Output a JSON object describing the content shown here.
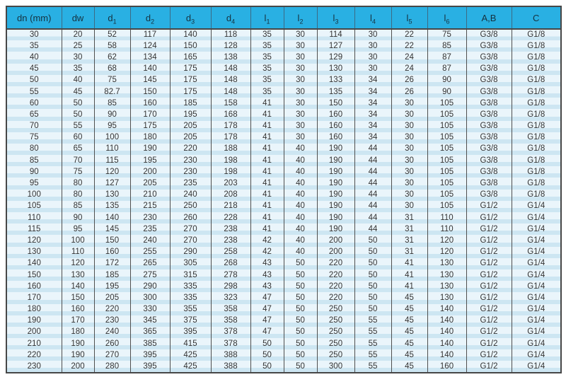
{
  "colors": {
    "header_bg": "#29b0e3",
    "row_stripe_light": "#eaf5fb",
    "row_stripe_dark": "#cde6f2",
    "border": "#474747",
    "text": "#333333"
  },
  "chart_data": {
    "type": "table",
    "title": "",
    "columns": [
      {
        "label": "dn (mm)",
        "sub": ""
      },
      {
        "label": "dw",
        "sub": ""
      },
      {
        "label": "d",
        "sub": "1"
      },
      {
        "label": "d",
        "sub": "2"
      },
      {
        "label": "d",
        "sub": "3"
      },
      {
        "label": "d",
        "sub": "4"
      },
      {
        "label": "l",
        "sub": "1"
      },
      {
        "label": "l",
        "sub": "2"
      },
      {
        "label": "l",
        "sub": "3"
      },
      {
        "label": "l",
        "sub": "4"
      },
      {
        "label": "l",
        "sub": "5"
      },
      {
        "label": "l",
        "sub": "6"
      },
      {
        "label": "A,B",
        "sub": ""
      },
      {
        "label": "C",
        "sub": ""
      }
    ],
    "rows": [
      [
        "30",
        "20",
        "52",
        "117",
        "140",
        "118",
        "35",
        "30",
        "114",
        "30",
        "22",
        "75",
        "G3/8",
        "G1/8"
      ],
      [
        "35",
        "25",
        "58",
        "124",
        "150",
        "128",
        "35",
        "30",
        "127",
        "30",
        "22",
        "85",
        "G3/8",
        "G1/8"
      ],
      [
        "40",
        "30",
        "62",
        "134",
        "165",
        "138",
        "35",
        "30",
        "129",
        "30",
        "24",
        "87",
        "G3/8",
        "G1/8"
      ],
      [
        "45",
        "35",
        "68",
        "140",
        "175",
        "148",
        "35",
        "30",
        "130",
        "30",
        "24",
        "87",
        "G3/8",
        "G1/8"
      ],
      [
        "50",
        "40",
        "75",
        "145",
        "175",
        "148",
        "35",
        "30",
        "133",
        "34",
        "26",
        "90",
        "G3/8",
        "G1/8"
      ],
      [
        "55",
        "45",
        "82.7",
        "150",
        "175",
        "148",
        "35",
        "30",
        "135",
        "34",
        "26",
        "90",
        "G3/8",
        "G1/8"
      ],
      [
        "60",
        "50",
        "85",
        "160",
        "185",
        "158",
        "41",
        "30",
        "150",
        "34",
        "30",
        "105",
        "G3/8",
        "G1/8"
      ],
      [
        "65",
        "50",
        "90",
        "170",
        "195",
        "168",
        "41",
        "30",
        "160",
        "34",
        "30",
        "105",
        "G3/8",
        "G1/8"
      ],
      [
        "70",
        "55",
        "95",
        "175",
        "205",
        "178",
        "41",
        "30",
        "160",
        "34",
        "30",
        "105",
        "G3/8",
        "G1/8"
      ],
      [
        "75",
        "60",
        "100",
        "180",
        "205",
        "178",
        "41",
        "30",
        "160",
        "34",
        "30",
        "105",
        "G3/8",
        "G1/8"
      ],
      [
        "80",
        "65",
        "110",
        "190",
        "220",
        "188",
        "41",
        "40",
        "190",
        "44",
        "30",
        "105",
        "G3/8",
        "G1/8"
      ],
      [
        "85",
        "70",
        "115",
        "195",
        "230",
        "198",
        "41",
        "40",
        "190",
        "44",
        "30",
        "105",
        "G3/8",
        "G1/8"
      ],
      [
        "90",
        "75",
        "120",
        "200",
        "230",
        "198",
        "41",
        "40",
        "190",
        "44",
        "30",
        "105",
        "G3/8",
        "G1/8"
      ],
      [
        "95",
        "80",
        "127",
        "205",
        "235",
        "203",
        "41",
        "40",
        "190",
        "44",
        "30",
        "105",
        "G3/8",
        "G1/8"
      ],
      [
        "100",
        "80",
        "130",
        "210",
        "240",
        "208",
        "41",
        "40",
        "190",
        "44",
        "30",
        "105",
        "G3/8",
        "G1/8"
      ],
      [
        "105",
        "85",
        "135",
        "215",
        "250",
        "218",
        "41",
        "40",
        "190",
        "44",
        "30",
        "105",
        "G1/2",
        "G1/4"
      ],
      [
        "110",
        "90",
        "140",
        "230",
        "260",
        "228",
        "41",
        "40",
        "190",
        "44",
        "31",
        "110",
        "G1/2",
        "G1/4"
      ],
      [
        "115",
        "95",
        "145",
        "235",
        "270",
        "238",
        "41",
        "40",
        "190",
        "44",
        "31",
        "110",
        "G1/2",
        "G1/4"
      ],
      [
        "120",
        "100",
        "150",
        "240",
        "270",
        "238",
        "42",
        "40",
        "200",
        "50",
        "31",
        "120",
        "G1/2",
        "G1/4"
      ],
      [
        "130",
        "110",
        "160",
        "255",
        "290",
        "258",
        "42",
        "40",
        "200",
        "50",
        "31",
        "120",
        "G1/2",
        "G1/4"
      ],
      [
        "140",
        "120",
        "172",
        "265",
        "305",
        "268",
        "43",
        "50",
        "220",
        "50",
        "41",
        "130",
        "G1/2",
        "G1/4"
      ],
      [
        "150",
        "130",
        "185",
        "275",
        "315",
        "278",
        "43",
        "50",
        "220",
        "50",
        "41",
        "130",
        "G1/2",
        "G1/4"
      ],
      [
        "160",
        "140",
        "195",
        "290",
        "335",
        "298",
        "43",
        "50",
        "220",
        "50",
        "41",
        "130",
        "G1/2",
        "G1/4"
      ],
      [
        "170",
        "150",
        "205",
        "300",
        "335",
        "323",
        "47",
        "50",
        "220",
        "50",
        "45",
        "130",
        "G1/2",
        "G1/4"
      ],
      [
        "180",
        "160",
        "220",
        "330",
        "355",
        "358",
        "47",
        "50",
        "250",
        "50",
        "45",
        "140",
        "G1/2",
        "G1/4"
      ],
      [
        "190",
        "170",
        "230",
        "345",
        "375",
        "358",
        "47",
        "50",
        "250",
        "55",
        "45",
        "140",
        "G1/2",
        "G1/4"
      ],
      [
        "200",
        "180",
        "240",
        "365",
        "395",
        "378",
        "47",
        "50",
        "250",
        "55",
        "45",
        "140",
        "G1/2",
        "G1/4"
      ],
      [
        "210",
        "190",
        "260",
        "385",
        "415",
        "378",
        "50",
        "50",
        "250",
        "55",
        "45",
        "140",
        "G1/2",
        "G1/4"
      ],
      [
        "220",
        "190",
        "270",
        "395",
        "425",
        "388",
        "50",
        "50",
        "250",
        "55",
        "45",
        "140",
        "G1/2",
        "G1/4"
      ],
      [
        "230",
        "200",
        "280",
        "395",
        "425",
        "388",
        "50",
        "50",
        "300",
        "55",
        "45",
        "160",
        "G1/2",
        "G1/4"
      ]
    ]
  }
}
